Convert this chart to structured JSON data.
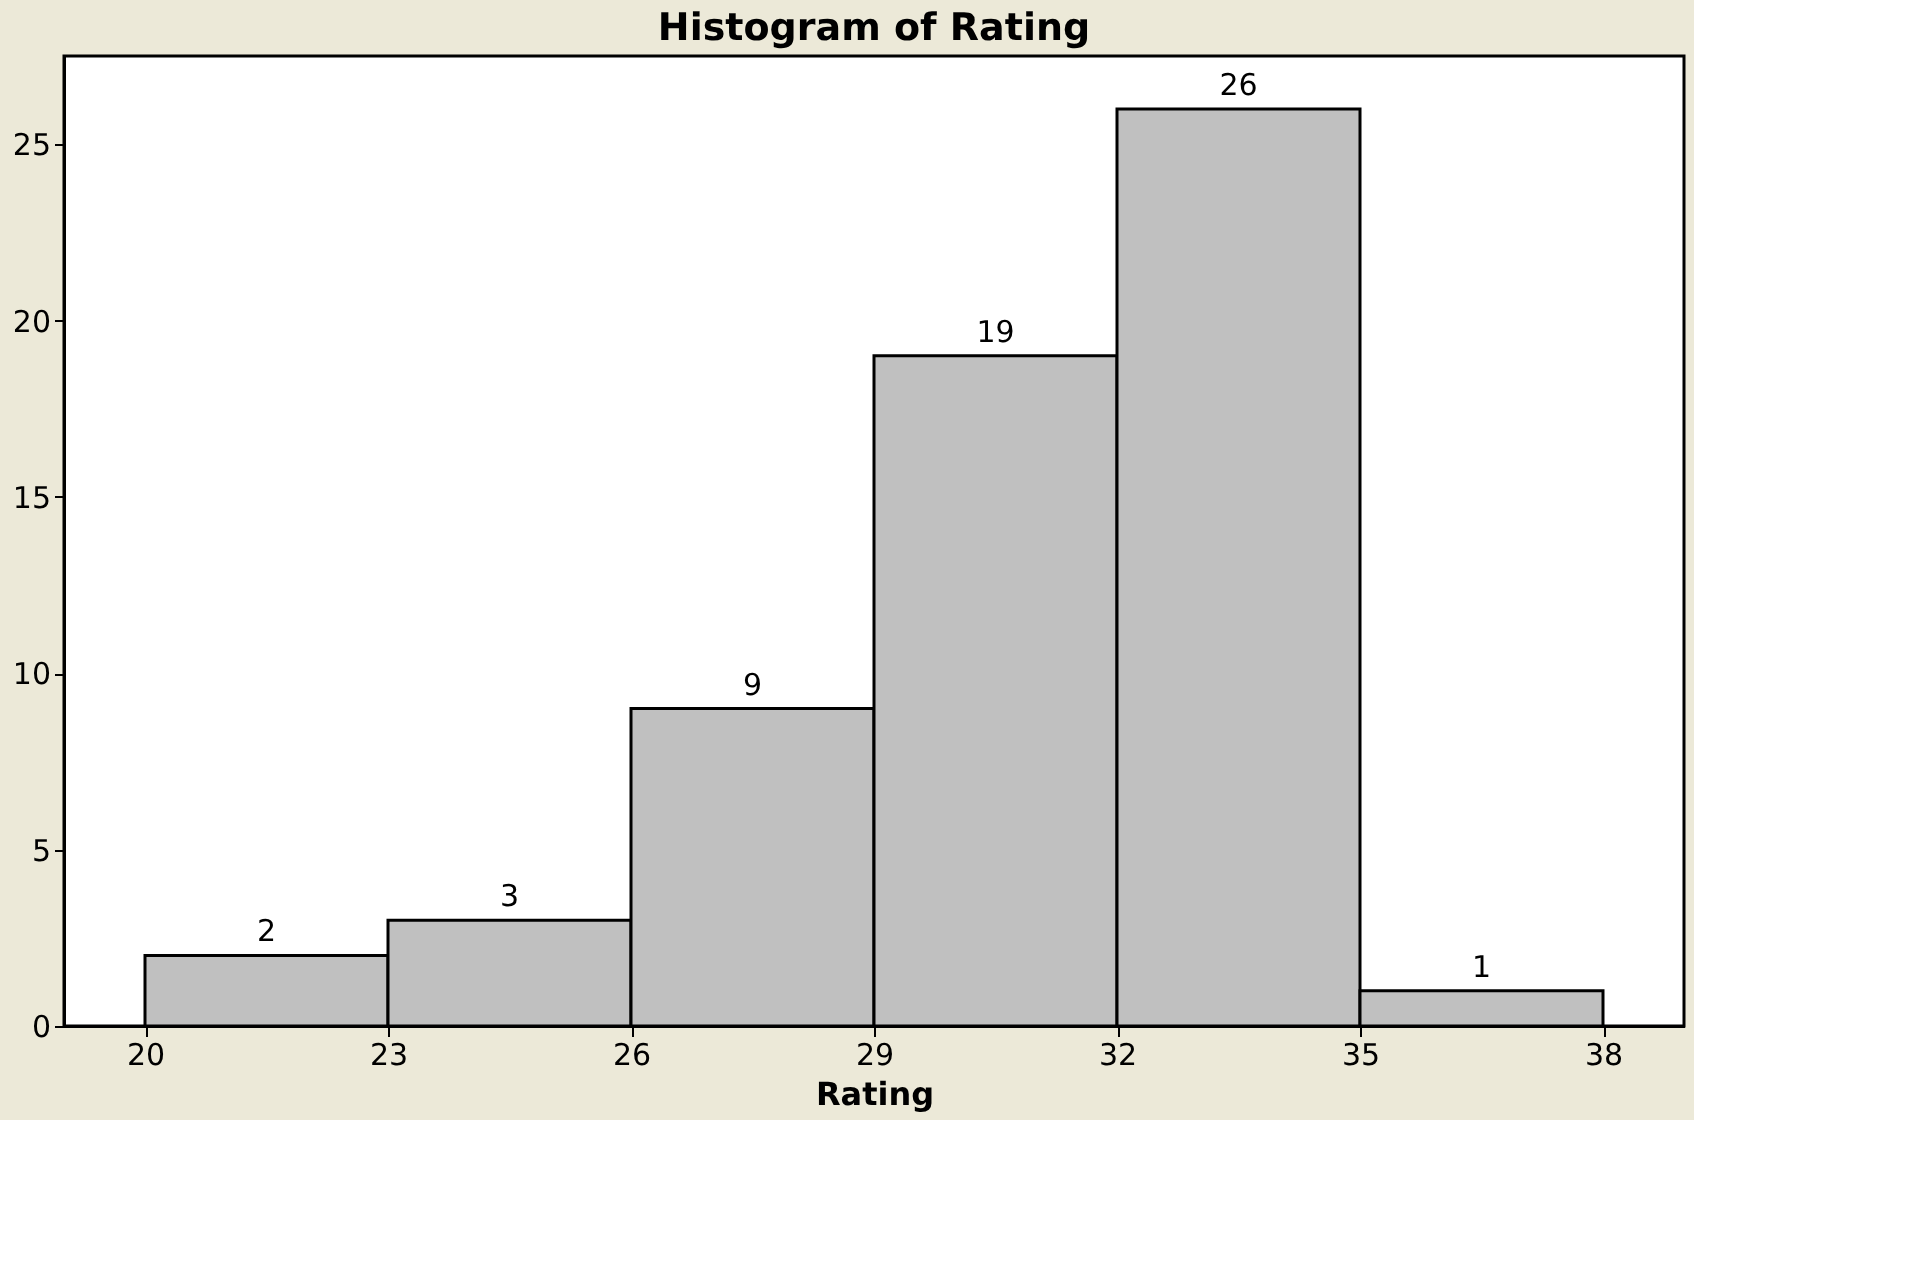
{
  "chart_data": {
    "type": "histogram",
    "title": "Histogram of Rating",
    "xlabel": "Rating",
    "bins": [
      20,
      23,
      26,
      29,
      32,
      35,
      38
    ],
    "values": [
      2,
      3,
      9,
      19,
      26,
      1
    ],
    "color": "#c0c0c0",
    "xlim": [
      19,
      39
    ],
    "ylim": [
      0,
      27.5
    ],
    "xticks": [
      20,
      23,
      26,
      29,
      32,
      35,
      38
    ],
    "yticks": [
      0,
      5,
      10,
      15,
      20,
      25
    ],
    "data_labels": true,
    "grid": false
  }
}
